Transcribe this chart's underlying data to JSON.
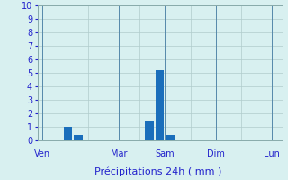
{
  "bar_positions": [
    3,
    4,
    11,
    12,
    13,
    14
  ],
  "bar_values": [
    1.0,
    0.4,
    1.5,
    5.2,
    0.4,
    0.0
  ],
  "bar_color": "#1a6ebb",
  "xlim": [
    0,
    24
  ],
  "ylim": [
    0,
    10
  ],
  "yticks": [
    0,
    1,
    2,
    3,
    4,
    5,
    6,
    7,
    8,
    9,
    10
  ],
  "day_labels": [
    "Ven",
    "Mar",
    "Sam",
    "Dim",
    "Lun"
  ],
  "day_x": [
    0.5,
    8.0,
    12.5,
    17.5,
    23.0
  ],
  "day_sep_x": [
    0.5,
    8.0,
    12.5,
    17.5,
    23.0
  ],
  "background_color": "#d8f0f0",
  "grid_color": "#b0cccc",
  "bar_width": 0.85,
  "xlabel": "Précipitations 24h ( mm )",
  "label_color": "#2222cc",
  "tick_color": "#2222cc",
  "ytick_fontsize": 7,
  "xlabel_fontsize": 8,
  "day_fontsize": 7,
  "spine_color": "#88aaaa"
}
